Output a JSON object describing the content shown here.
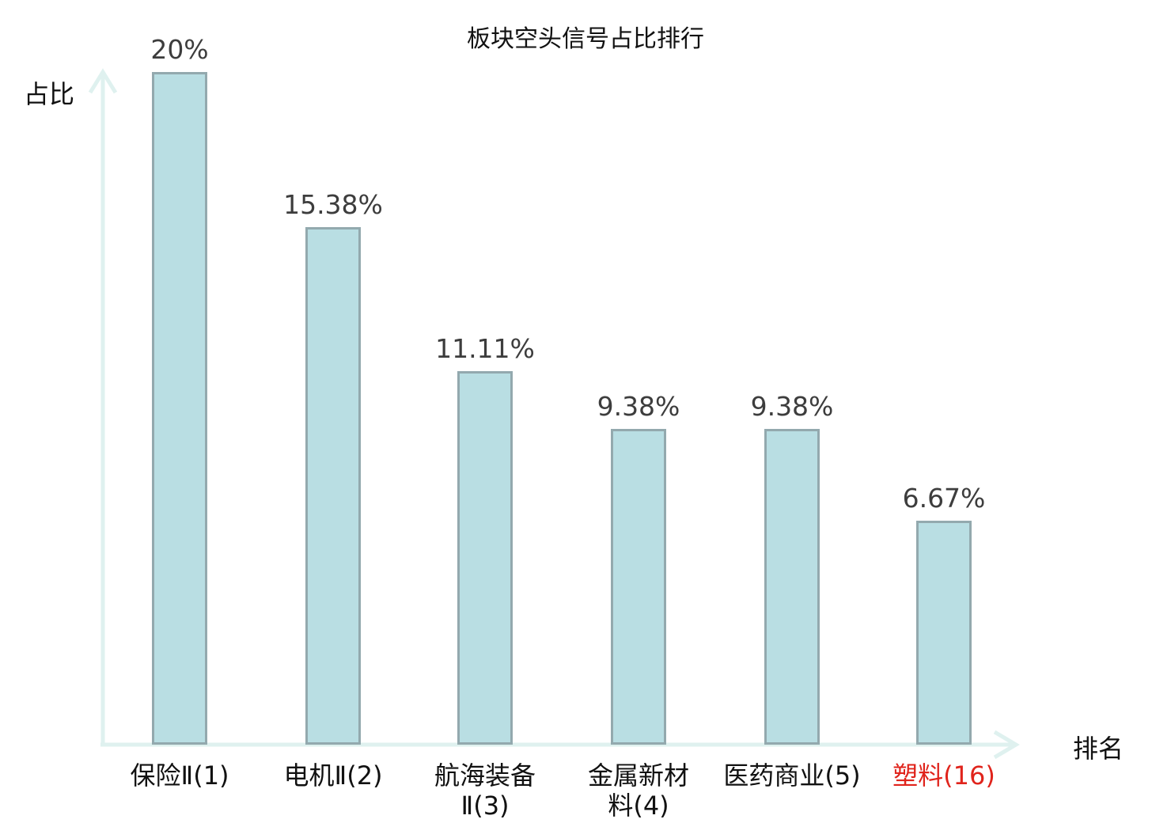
{
  "chart_data": {
    "type": "bar",
    "title": "板块空头信号占比排行",
    "ylabel": "占比",
    "xlabel": "排名",
    "categories": [
      "保险Ⅱ(1)",
      "电机Ⅱ(2)",
      "航海装备Ⅱ(3)",
      "金属新材料(4)",
      "医药商业(5)",
      "塑料(16)"
    ],
    "category_lines": [
      [
        "保险Ⅱ(1)"
      ],
      [
        "电机Ⅱ(2)"
      ],
      [
        "航海装备",
        "Ⅱ(3)"
      ],
      [
        "金属新材",
        "料(4)"
      ],
      [
        "医药商业(5)"
      ],
      [
        "塑料(16)"
      ]
    ],
    "values": [
      20,
      15.38,
      11.11,
      9.38,
      9.38,
      6.67
    ],
    "value_labels": [
      "20%",
      "15.38%",
      "11.11%",
      "9.38%",
      "9.38%",
      "6.67%"
    ],
    "highlight_index": 5,
    "ylim": [
      0,
      20
    ],
    "grid": false,
    "legend": "none",
    "colors": {
      "bar_fill": "#b9dee3",
      "bar_border": "#93a9ae",
      "axis": "#dff1ef",
      "value_label": "#3d3d3d",
      "category_label": "#111111",
      "highlight": "#e0241c",
      "title": "#111111"
    }
  }
}
